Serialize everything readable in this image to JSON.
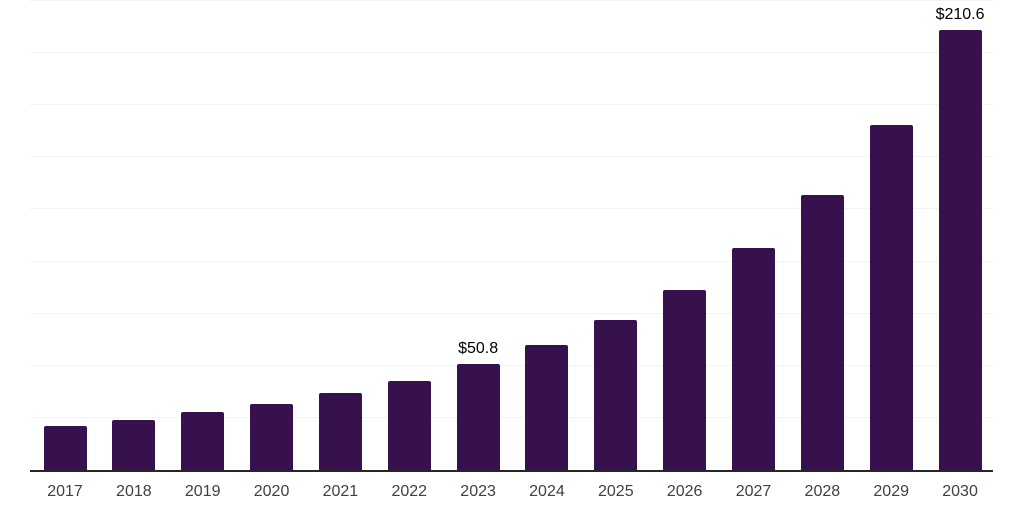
{
  "chart_data": {
    "type": "bar",
    "categories": [
      "2017",
      "2018",
      "2019",
      "2020",
      "2021",
      "2022",
      "2023",
      "2024",
      "2025",
      "2026",
      "2027",
      "2028",
      "2029",
      "2030"
    ],
    "values": [
      21.2,
      23.9,
      27.9,
      31.6,
      36.7,
      42.7,
      50.8,
      59.7,
      71.7,
      86.3,
      106.1,
      131.5,
      165.3,
      210.6
    ],
    "data_labels": [
      {
        "index": 6,
        "text": "$50.8"
      },
      {
        "index": 13,
        "text": "$210.6"
      }
    ],
    "title": "",
    "xlabel": "",
    "ylabel": "",
    "ylim": [
      0,
      225
    ],
    "grid": true,
    "grid_interval": 25,
    "legend": "none",
    "colors": {
      "bar_fill": "#36114e",
      "axis_line": "#262626",
      "tick_label": "#404040",
      "data_label": "#000000",
      "gridline": "#f2f2f2",
      "background": "#ffffff"
    }
  }
}
